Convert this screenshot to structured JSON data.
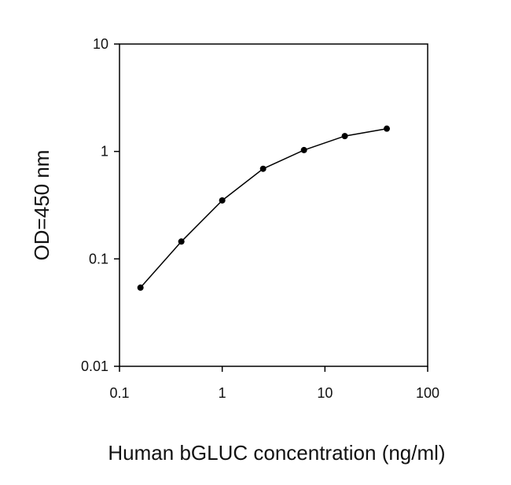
{
  "chart_data": {
    "type": "line",
    "title": "",
    "xlabel": "Human bGLUC concentration (ng/ml)",
    "ylabel": "OD=450 nm",
    "x_scale": "log",
    "y_scale": "log",
    "xlim": [
      0.1,
      100
    ],
    "ylim": [
      0.01,
      10
    ],
    "x_ticks": [
      0.1,
      1,
      10,
      100
    ],
    "x_tick_labels": [
      "0.1",
      "1",
      "10",
      "100"
    ],
    "y_ticks": [
      0.01,
      0.1,
      1,
      10
    ],
    "y_tick_labels": [
      "0.01",
      "0.1",
      "1",
      "10"
    ],
    "grid": false,
    "legend": "none",
    "series": [
      {
        "x": [
          0.16,
          0.4,
          1.0,
          2.5,
          6.25,
          15.6,
          40
        ],
        "y": [
          0.054,
          0.145,
          0.35,
          0.69,
          1.03,
          1.39,
          1.63
        ]
      }
    ],
    "colors": {
      "line": "#000000",
      "marker": "#000000",
      "frame": "#000000"
    }
  }
}
